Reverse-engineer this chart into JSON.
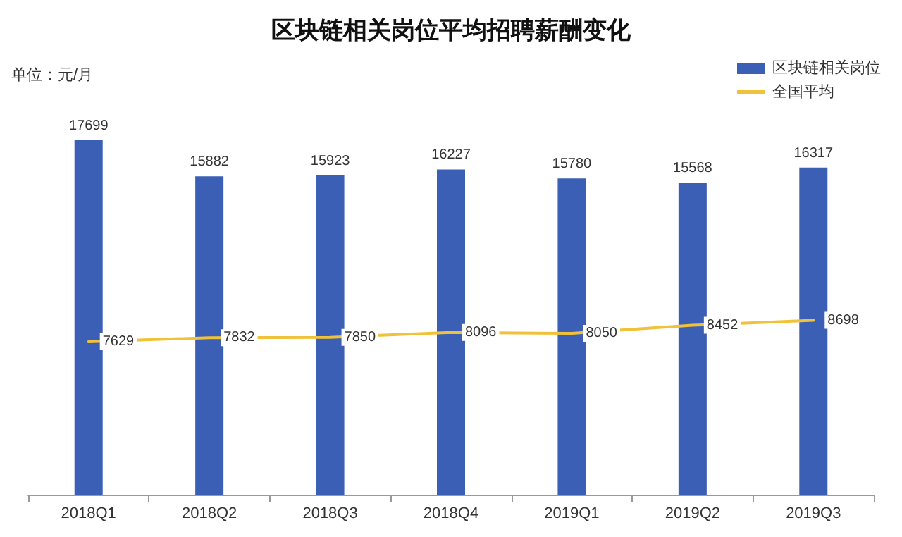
{
  "chart_data": {
    "type": "bar",
    "title": "区块链相关岗位平均招聘薪酬变化",
    "annotations": [
      "单位：元/月"
    ],
    "categories": [
      "2018Q1",
      "2018Q2",
      "2018Q3",
      "2018Q4",
      "2019Q1",
      "2019Q2",
      "2019Q3"
    ],
    "series": [
      {
        "name": "区块链相关岗位",
        "color": "#3b5fb5",
        "values": [
          17699,
          15882,
          15923,
          16227,
          15780,
          15568,
          16317
        ]
      },
      {
        "name": "全国平均",
        "type": "line",
        "color": "#f0c23a",
        "values": [
          7629,
          7832,
          7850,
          8096,
          8050,
          8452,
          8698
        ],
        "marker": "none"
      }
    ],
    "data_labels": true,
    "legend": "top right",
    "grid": false
  }
}
